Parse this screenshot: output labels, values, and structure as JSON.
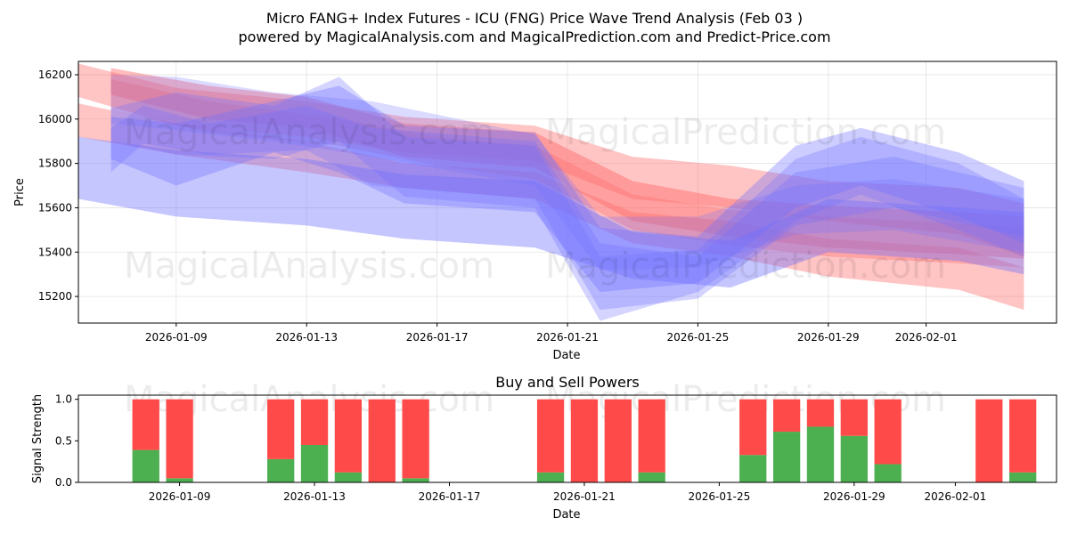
{
  "colors": {
    "buy": "#4caf50",
    "sell": "#ff4a4a",
    "up_wave": "#ff6b6b",
    "down_wave": "#7070ff"
  },
  "chart_data": [
    {
      "type": "area",
      "title": "Micro FANG+ Index Futures - ICU (FNG) Price Wave Trend Analysis (Feb 03 )",
      "subtitle": "powered by MagicalAnalysis.com and MagicalPrediction.com and Predict-Price.com",
      "xlabel": "Date",
      "ylabel": "Price",
      "xlim": [
        "2026-01-06",
        "2026-02-05"
      ],
      "ylim": [
        15080,
        16260
      ],
      "yticks": [
        15200,
        15400,
        15600,
        15800,
        16000,
        16200
      ],
      "ytick_labels": [
        "15200",
        "15400",
        "15600",
        "15800",
        "16000",
        "16200"
      ],
      "xticks": [
        "2026-01-09",
        "2026-01-13",
        "2026-01-17",
        "2026-01-21",
        "2026-01-25",
        "2026-01-29",
        "2026-02-01"
      ],
      "grid": true,
      "watermarks": [
        "MagicalAnalysis.com",
        "MagicalPrediction.com",
        "MagicalAnalysis.com",
        "MagicalPrediction.com"
      ],
      "bands": [
        {
          "color": "red",
          "opacity": 0.4,
          "x": [
            "2026-01-06",
            "2026-01-09",
            "2026-01-13",
            "2026-01-16",
            "2026-01-20",
            "2026-01-23",
            "2026-01-26",
            "2026-01-29",
            "2026-02-02",
            "2026-02-04"
          ],
          "upper": [
            16250,
            16140,
            16080,
            16010,
            15970,
            15830,
            15790,
            15720,
            15690,
            15620
          ],
          "lower": [
            16100,
            15970,
            15920,
            15850,
            15810,
            15640,
            15600,
            15540,
            15480,
            15380
          ]
        },
        {
          "color": "red",
          "opacity": 0.4,
          "x": [
            "2026-01-06",
            "2026-01-09",
            "2026-01-13",
            "2026-01-16",
            "2026-01-20",
            "2026-01-23",
            "2026-01-26",
            "2026-01-29",
            "2026-02-02",
            "2026-02-04"
          ],
          "upper": [
            16070,
            15980,
            15900,
            15800,
            15760,
            15580,
            15540,
            15460,
            15420,
            15330
          ],
          "lower": [
            15920,
            15840,
            15760,
            15690,
            15640,
            15440,
            15380,
            15290,
            15230,
            15140
          ]
        },
        {
          "color": "red",
          "opacity": 0.45,
          "x": [
            "2026-01-07",
            "2026-01-10",
            "2026-01-13",
            "2026-01-16",
            "2026-01-20",
            "2026-01-23",
            "2026-01-26",
            "2026-01-29",
            "2026-02-02",
            "2026-02-04"
          ],
          "upper": [
            16230,
            16150,
            16100,
            15980,
            15940,
            15720,
            15640,
            15610,
            15580,
            15560
          ],
          "lower": [
            16110,
            16000,
            15960,
            15830,
            15780,
            15540,
            15470,
            15420,
            15390,
            15370
          ]
        },
        {
          "color": "red",
          "opacity": 0.35,
          "x": [
            "2026-01-07",
            "2026-01-10",
            "2026-01-14",
            "2026-01-17",
            "2026-01-20",
            "2026-01-23",
            "2026-01-26",
            "2026-01-29",
            "2026-02-02",
            "2026-02-04"
          ],
          "upper": [
            16180,
            16080,
            16000,
            15920,
            15880,
            15660,
            15590,
            15560,
            15530,
            15510
          ],
          "lower": [
            16040,
            15940,
            15880,
            15790,
            15730,
            15500,
            15430,
            15380,
            15350,
            15330
          ]
        },
        {
          "color": "blue",
          "opacity": 0.4,
          "x": [
            "2026-01-06",
            "2026-01-09",
            "2026-01-13",
            "2026-01-16",
            "2026-01-20",
            "2026-01-23",
            "2026-01-26",
            "2026-01-29",
            "2026-02-02",
            "2026-02-04"
          ],
          "upper": [
            15920,
            15860,
            15820,
            15750,
            15720,
            15490,
            15450,
            15640,
            15600,
            15580
          ],
          "lower": [
            15640,
            15560,
            15520,
            15460,
            15420,
            15280,
            15240,
            15400,
            15360,
            15300
          ]
        },
        {
          "color": "blue",
          "opacity": 0.35,
          "x": [
            "2026-01-07",
            "2026-01-09",
            "2026-01-12",
            "2026-01-14",
            "2026-01-16",
            "2026-01-20",
            "2026-01-22",
            "2026-01-25",
            "2026-01-28",
            "2026-01-30",
            "2026-02-02",
            "2026-02-04"
          ],
          "upper": [
            16010,
            15980,
            16080,
            16150,
            15970,
            15940,
            15510,
            15470,
            15880,
            15960,
            15850,
            15720
          ],
          "lower": [
            15820,
            15700,
            15850,
            15760,
            15620,
            15580,
            15220,
            15260,
            15600,
            15700,
            15560,
            15440
          ]
        },
        {
          "color": "blue",
          "opacity": 0.3,
          "x": [
            "2026-01-07",
            "2026-01-09",
            "2026-01-12",
            "2026-01-14",
            "2026-01-16",
            "2026-01-20",
            "2026-01-22",
            "2026-01-25",
            "2026-01-28",
            "2026-01-30",
            "2026-02-02",
            "2026-02-04"
          ],
          "upper": [
            16050,
            16120,
            16060,
            16190,
            15920,
            15880,
            15380,
            15410,
            15820,
            15920,
            15800,
            15640
          ],
          "lower": [
            15900,
            15840,
            15820,
            15900,
            15650,
            15600,
            15090,
            15220,
            15540,
            15660,
            15500,
            15380
          ]
        },
        {
          "color": "blue",
          "opacity": 0.3,
          "x": [
            "2026-01-07",
            "2026-01-08",
            "2026-01-10",
            "2026-01-13",
            "2026-01-15",
            "2026-01-20",
            "2026-01-22",
            "2026-01-25",
            "2026-01-28",
            "2026-01-31",
            "2026-02-04"
          ],
          "upper": [
            15960,
            16060,
            15980,
            16060,
            15960,
            15900,
            15440,
            15380,
            15760,
            15830,
            15690
          ],
          "lower": [
            15760,
            15890,
            15840,
            15860,
            15700,
            15640,
            15140,
            15190,
            15520,
            15600,
            15470
          ]
        },
        {
          "color": "blue",
          "opacity": 0.25,
          "x": [
            "2026-01-07",
            "2026-01-09",
            "2026-01-12",
            "2026-01-15",
            "2026-01-20",
            "2026-01-22",
            "2026-01-25",
            "2026-01-28",
            "2026-01-31",
            "2026-02-04"
          ],
          "upper": [
            16200,
            16190,
            16120,
            16080,
            15930,
            15560,
            15560,
            15700,
            15730,
            15640
          ],
          "lower": [
            15980,
            15950,
            15900,
            15830,
            15700,
            15320,
            15330,
            15480,
            15500,
            15400
          ]
        }
      ]
    },
    {
      "type": "bar",
      "title": "Buy and Sell Powers",
      "xlabel": "Date",
      "ylabel": "Signal Strength",
      "ylim": [
        0,
        1.05
      ],
      "yticks": [
        0,
        0.5,
        1
      ],
      "ytick_labels": [
        "0.0",
        "0.5",
        "1.0"
      ],
      "xlim": [
        "2026-01-06",
        "2026-02-04"
      ],
      "xticks": [
        "2026-01-09",
        "2026-01-13",
        "2026-01-17",
        "2026-01-21",
        "2026-01-25",
        "2026-01-29",
        "2026-02-01"
      ],
      "watermarks": [
        "MagicalAnalysis.com",
        "MagicalPrediction.com"
      ],
      "categories": [
        "2026-01-08",
        "2026-01-09",
        "2026-01-12",
        "2026-01-13",
        "2026-01-14",
        "2026-01-15",
        "2026-01-16",
        "2026-01-20",
        "2026-01-21",
        "2026-01-22",
        "2026-01-23",
        "2026-01-26",
        "2026-01-27",
        "2026-01-28",
        "2026-01-29",
        "2026-01-30",
        "2026-02-02",
        "2026-02-03"
      ],
      "series": [
        {
          "name": "Buy",
          "color": "green",
          "values": [
            0.39,
            0.05,
            0.28,
            0.45,
            0.12,
            0.0,
            0.05,
            0.12,
            0.0,
            0.0,
            0.12,
            0.33,
            0.61,
            0.67,
            0.56,
            0.22,
            0.0,
            0.12
          ]
        },
        {
          "name": "Sell",
          "color": "red",
          "values": [
            0.61,
            0.95,
            0.72,
            0.55,
            0.88,
            1.0,
            0.95,
            0.88,
            1.0,
            1.0,
            0.88,
            0.67,
            0.39,
            0.33,
            0.44,
            0.78,
            1.0,
            0.88
          ]
        }
      ]
    }
  ]
}
